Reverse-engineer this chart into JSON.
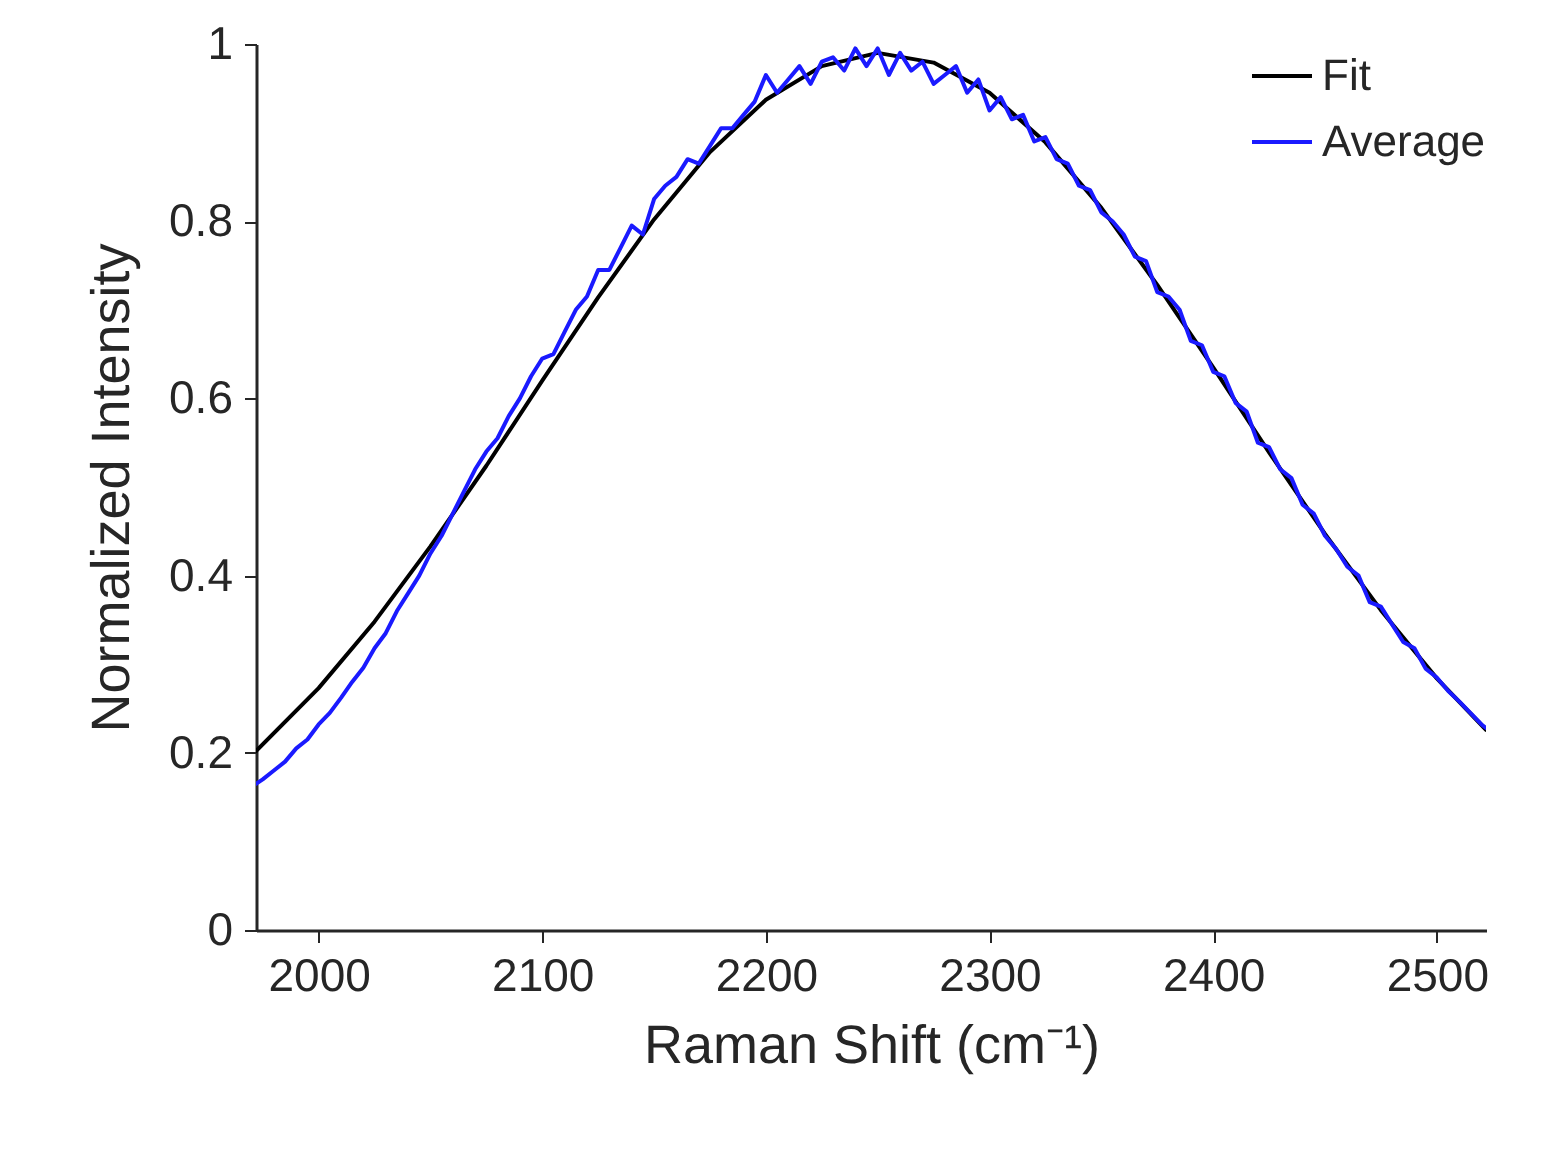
{
  "chart_data": {
    "type": "line",
    "xlabel": "Raman Shift (cm⁻¹)",
    "ylabel": "Normalized Intensity",
    "xlim": [
      1972,
      2522
    ],
    "xticks": [
      2000,
      2100,
      2200,
      2300,
      2400,
      2500
    ],
    "ylim": [
      0,
      1
    ],
    "yticks": [
      0,
      0.2,
      0.4,
      0.6,
      0.8,
      1
    ],
    "legend": "top right",
    "series": [
      {
        "name": "Fit",
        "color": "#000000",
        "x": [
          1972,
          2000,
          2025,
          2050,
          2075,
          2100,
          2125,
          2150,
          2175,
          2200,
          2225,
          2250,
          2275,
          2300,
          2325,
          2350,
          2375,
          2400,
          2425,
          2450,
          2475,
          2500,
          2522
        ],
        "values": [
          0.202,
          0.273,
          0.348,
          0.433,
          0.524,
          0.62,
          0.714,
          0.802,
          0.878,
          0.937,
          0.975,
          0.99,
          0.979,
          0.945,
          0.889,
          0.815,
          0.728,
          0.635,
          0.539,
          0.447,
          0.361,
          0.284,
          0.226
        ]
      },
      {
        "name": "Average",
        "color": "#1a1aff",
        "x": [
          1972,
          1975,
          1980,
          1985,
          1990,
          1995,
          2000,
          2005,
          2010,
          2015,
          2020,
          2025,
          2030,
          2035,
          2040,
          2045,
          2050,
          2055,
          2060,
          2065,
          2070,
          2075,
          2080,
          2085,
          2090,
          2095,
          2100,
          2105,
          2110,
          2115,
          2120,
          2125,
          2130,
          2135,
          2140,
          2145,
          2150,
          2155,
          2160,
          2165,
          2170,
          2175,
          2180,
          2185,
          2190,
          2195,
          2200,
          2205,
          2210,
          2215,
          2220,
          2225,
          2230,
          2235,
          2240,
          2245,
          2250,
          2255,
          2260,
          2265,
          2270,
          2275,
          2280,
          2285,
          2290,
          2295,
          2300,
          2305,
          2310,
          2315,
          2320,
          2325,
          2330,
          2335,
          2340,
          2345,
          2350,
          2355,
          2360,
          2365,
          2370,
          2375,
          2380,
          2385,
          2390,
          2395,
          2400,
          2405,
          2410,
          2415,
          2420,
          2425,
          2430,
          2435,
          2440,
          2445,
          2450,
          2455,
          2460,
          2465,
          2470,
          2475,
          2480,
          2485,
          2490,
          2495,
          2500,
          2505,
          2510,
          2515,
          2520,
          2522
        ],
        "values": [
          0.165,
          0.17,
          0.18,
          0.19,
          0.205,
          0.215,
          0.232,
          0.245,
          0.262,
          0.28,
          0.296,
          0.318,
          0.335,
          0.36,
          0.38,
          0.4,
          0.425,
          0.445,
          0.47,
          0.495,
          0.52,
          0.54,
          0.555,
          0.58,
          0.6,
          0.625,
          0.645,
          0.65,
          0.675,
          0.7,
          0.715,
          0.745,
          0.745,
          0.77,
          0.795,
          0.785,
          0.825,
          0.84,
          0.85,
          0.87,
          0.865,
          0.885,
          0.905,
          0.905,
          0.92,
          0.935,
          0.965,
          0.945,
          0.96,
          0.975,
          0.955,
          0.98,
          0.985,
          0.97,
          0.995,
          0.975,
          0.995,
          0.965,
          0.99,
          0.97,
          0.98,
          0.955,
          0.965,
          0.975,
          0.945,
          0.96,
          0.925,
          0.94,
          0.915,
          0.92,
          0.89,
          0.895,
          0.87,
          0.865,
          0.84,
          0.835,
          0.81,
          0.8,
          0.785,
          0.76,
          0.755,
          0.72,
          0.715,
          0.7,
          0.665,
          0.66,
          0.63,
          0.625,
          0.595,
          0.585,
          0.55,
          0.545,
          0.52,
          0.51,
          0.48,
          0.47,
          0.445,
          0.43,
          0.41,
          0.4,
          0.37,
          0.365,
          0.345,
          0.325,
          0.318,
          0.295,
          0.285,
          0.27,
          0.258,
          0.245,
          0.232,
          0.228
        ]
      }
    ]
  }
}
